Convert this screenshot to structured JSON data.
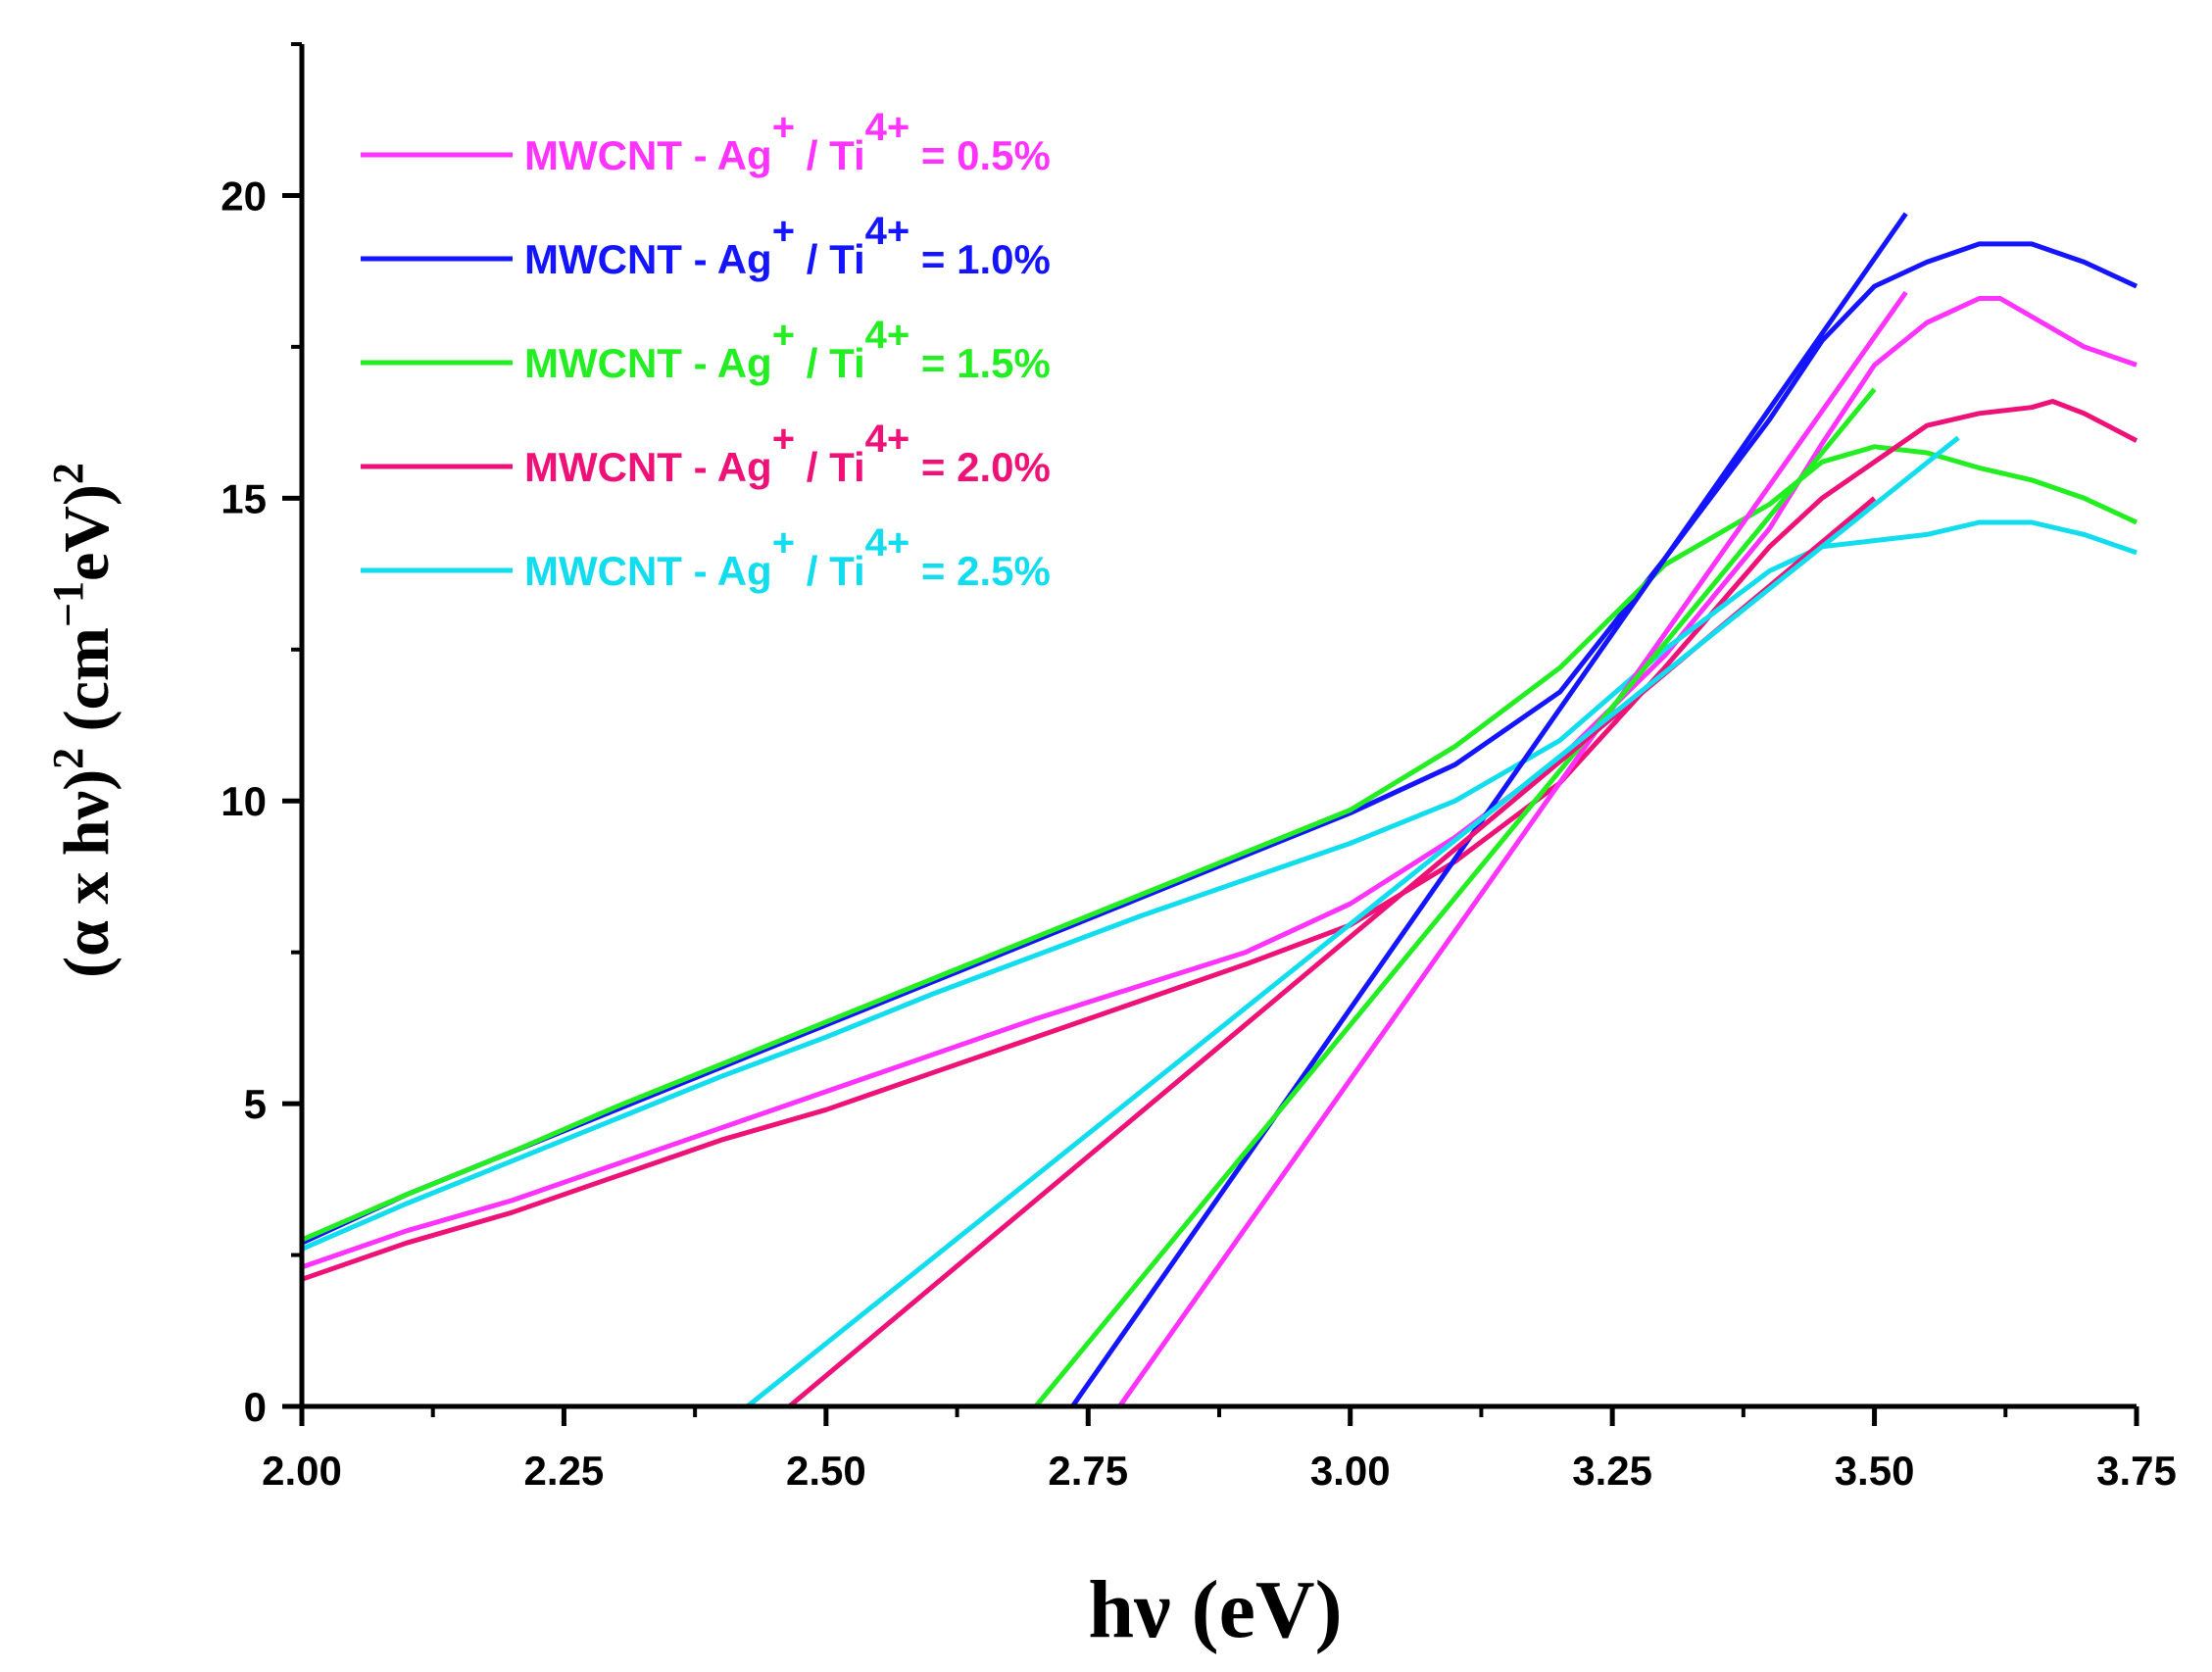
{
  "chart_data": {
    "type": "line",
    "title": "",
    "xlabel": "hν (eV)",
    "ylabel": {
      "open": "(α x hν)",
      "sup1": "2",
      "mid": " (cm",
      "sup2": "−1",
      "unit": "eV)",
      "sup3": "2"
    },
    "xlim": [
      2.0,
      3.75
    ],
    "ylim": [
      0,
      22.5
    ],
    "xticks": [
      "2.00",
      "2.25",
      "2.50",
      "2.75",
      "3.00",
      "3.25",
      "3.50",
      "3.75"
    ],
    "yticks": [
      "0",
      "5",
      "10",
      "15",
      "20"
    ],
    "legend_position": "top-left",
    "series": [
      {
        "name": "MWCNT - Ag+ / Ti4+ = 0.5%",
        "label": {
          "prefix": "MWCNT - Ag",
          "sup1": "+",
          "mid": " /  Ti",
          "sup2": "4+",
          "suffix": " = 0.5%"
        },
        "color": "#ff33ff",
        "x": [
          2.0,
          2.1,
          2.2,
          2.3,
          2.4,
          2.5,
          2.6,
          2.7,
          2.8,
          2.9,
          3.0,
          3.1,
          3.2,
          3.3,
          3.4,
          3.45,
          3.5,
          3.55,
          3.6,
          3.62,
          3.65,
          3.7,
          3.75
        ],
        "y": [
          2.3,
          2.9,
          3.4,
          4.0,
          4.6,
          5.2,
          5.8,
          6.4,
          6.95,
          7.5,
          8.3,
          9.4,
          10.7,
          12.4,
          14.5,
          15.9,
          17.2,
          17.9,
          18.3,
          18.3,
          18.0,
          17.5,
          17.2
        ],
        "fit_line": {
          "x": [
            2.78,
            3.53
          ],
          "y": [
            0,
            18.4
          ]
        }
      },
      {
        "name": "MWCNT - Ag+ / Ti4+ = 1.0%",
        "label": {
          "prefix": "MWCNT - Ag",
          "sup1": "+",
          "mid": " /  Ti",
          "sup2": "4+",
          "suffix": " = 1.0%"
        },
        "color": "#1414ff",
        "x": [
          2.0,
          2.1,
          2.2,
          2.3,
          2.4,
          2.5,
          2.6,
          2.7,
          2.8,
          2.9,
          3.0,
          3.1,
          3.2,
          3.3,
          3.4,
          3.45,
          3.5,
          3.55,
          3.6,
          3.62,
          3.65,
          3.7,
          3.75
        ],
        "y": [
          2.7,
          3.5,
          4.2,
          4.9,
          5.6,
          6.3,
          7.0,
          7.7,
          8.4,
          9.1,
          9.8,
          10.6,
          11.8,
          14.0,
          16.3,
          17.6,
          18.5,
          18.9,
          19.2,
          19.2,
          19.2,
          18.9,
          18.5
        ],
        "fit_line": {
          "x": [
            2.735,
            3.53
          ],
          "y": [
            0,
            19.7
          ]
        }
      },
      {
        "name": "MWCNT - Ag+ / Ti4+ = 1.5%",
        "label": {
          "prefix": "MWCNT - Ag",
          "sup1": "+",
          "mid": " /  Ti",
          "sup2": "4+",
          "suffix": " = 1.5%"
        },
        "color": "#22ee22",
        "x": [
          2.0,
          2.1,
          2.2,
          2.3,
          2.4,
          2.5,
          2.6,
          2.7,
          2.8,
          2.9,
          3.0,
          3.1,
          3.2,
          3.3,
          3.4,
          3.45,
          3.5,
          3.55,
          3.6,
          3.65,
          3.7,
          3.75
        ],
        "y": [
          2.75,
          3.5,
          4.2,
          4.95,
          5.65,
          6.35,
          7.05,
          7.75,
          8.45,
          9.15,
          9.85,
          10.9,
          12.2,
          13.9,
          14.9,
          15.6,
          15.85,
          15.75,
          15.5,
          15.3,
          15.0,
          14.6
        ],
        "fit_line": {
          "x": [
            2.7,
            3.5
          ],
          "y": [
            0,
            16.8
          ]
        }
      },
      {
        "name": "MWCNT - Ag+ / Ti4+ = 2.0%",
        "label": {
          "prefix": "MWCNT - Ag",
          "sup1": "+",
          "mid": " /  Ti",
          "sup2": "4+",
          "suffix": " = 2.0%"
        },
        "color": "#ee1177",
        "x": [
          2.0,
          2.1,
          2.2,
          2.3,
          2.4,
          2.5,
          2.6,
          2.7,
          2.8,
          2.9,
          3.0,
          3.1,
          3.2,
          3.3,
          3.4,
          3.45,
          3.5,
          3.55,
          3.6,
          3.65,
          3.67,
          3.7,
          3.75
        ],
        "y": [
          2.1,
          2.7,
          3.2,
          3.8,
          4.4,
          4.9,
          5.5,
          6.1,
          6.7,
          7.3,
          7.95,
          9.0,
          10.3,
          12.2,
          14.2,
          15.0,
          15.6,
          16.2,
          16.4,
          16.5,
          16.6,
          16.4,
          15.95
        ],
        "fit_line": {
          "x": [
            2.465,
            3.5
          ],
          "y": [
            0,
            15.0
          ]
        }
      },
      {
        "name": "MWCNT - Ag+ / Ti4+ = 2.5%",
        "label": {
          "prefix": "MWCNT - Ag",
          "sup1": "+",
          "mid": " /  Ti",
          "sup2": "4+",
          "suffix": " = 2.5%"
        },
        "color": "#11ddee",
        "x": [
          2.0,
          2.1,
          2.2,
          2.3,
          2.4,
          2.5,
          2.6,
          2.7,
          2.8,
          2.9,
          3.0,
          3.1,
          3.2,
          3.3,
          3.4,
          3.45,
          3.5,
          3.55,
          3.6,
          3.65,
          3.7,
          3.75
        ],
        "y": [
          2.6,
          3.35,
          4.05,
          4.75,
          5.45,
          6.1,
          6.8,
          7.45,
          8.1,
          8.7,
          9.3,
          10.0,
          11.0,
          12.5,
          13.8,
          14.2,
          14.3,
          14.4,
          14.6,
          14.6,
          14.4,
          14.1
        ],
        "fit_line": {
          "x": [
            2.425,
            3.58
          ],
          "y": [
            0,
            16.0
          ]
        }
      }
    ]
  }
}
